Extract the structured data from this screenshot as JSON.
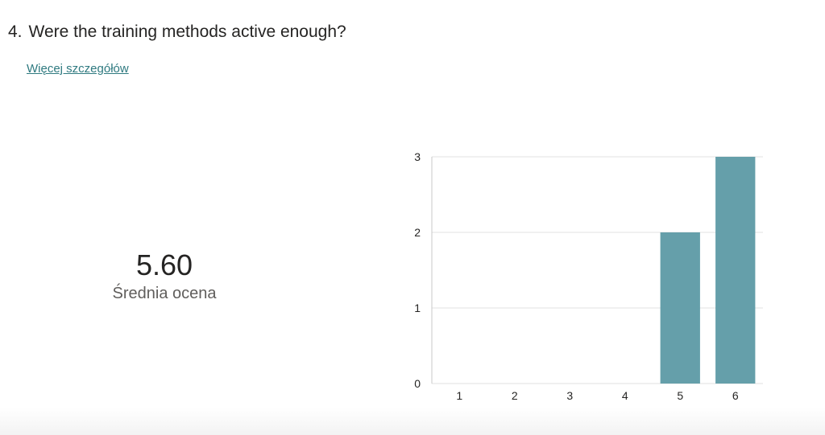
{
  "question": {
    "number": "4.",
    "title": "Were the training methods active enough?"
  },
  "details_link": "Więcej szczegółów",
  "average": {
    "value": "5.60",
    "label": "Średnia ocena"
  },
  "colors": {
    "bar": "#659faa",
    "grid": "#e1e1e1",
    "axis": "#c8c8c8",
    "link": "#2f7a80"
  },
  "chart_data": {
    "type": "bar",
    "categories": [
      "1",
      "2",
      "3",
      "4",
      "5",
      "6"
    ],
    "values": [
      0,
      0,
      0,
      0,
      2,
      3
    ],
    "yticks": [
      "0",
      "1",
      "2",
      "3"
    ],
    "ylim": [
      0,
      3
    ],
    "grid": true,
    "title": "",
    "xlabel": "",
    "ylabel": ""
  }
}
